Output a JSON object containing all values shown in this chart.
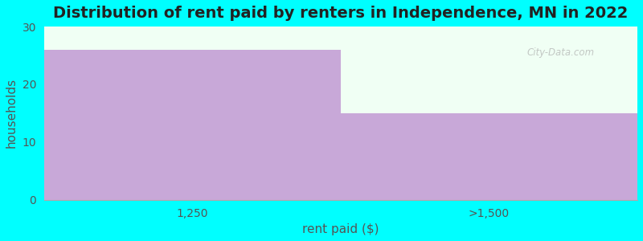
{
  "title": "Distribution of rent paid by renters in Independence, MN in 2022",
  "categories": [
    "1,250",
    ">1,500"
  ],
  "values": [
    26,
    15
  ],
  "bar_color": "#C8A8D8",
  "background_color": "#00FFFF",
  "plot_bg_color": "#F0FFF4",
  "ylabel": "households",
  "xlabel": "rent paid ($)",
  "ylim": [
    0,
    30
  ],
  "yticks": [
    0,
    10,
    20,
    30
  ],
  "title_fontsize": 14,
  "axis_label_fontsize": 11,
  "tick_fontsize": 10,
  "watermark_text": "City-Data.com"
}
